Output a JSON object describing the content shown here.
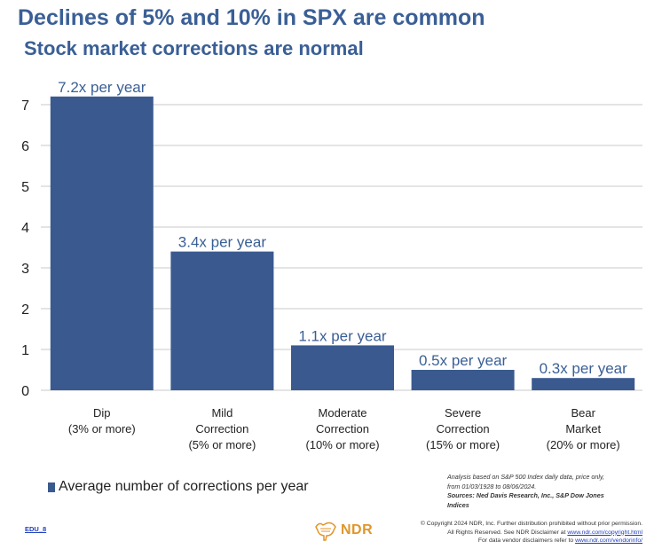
{
  "header": {
    "title": "Declines of 5% and 10% in SPX are common",
    "subtitle": "Stock market corrections are normal"
  },
  "chart_data": {
    "type": "bar",
    "title": "Declines of 5% and 10% in SPX are common",
    "subtitle": "Stock market corrections are normal",
    "categories": [
      {
        "line1": "Dip",
        "line2": "(3% or more)"
      },
      {
        "line1": "Mild",
        "line2": "Correction",
        "line3": "(5% or more)"
      },
      {
        "line1": "Moderate",
        "line2": "Correction",
        "line3": "(10% or more)"
      },
      {
        "line1": "Severe",
        "line2": "Correction",
        "line3": "(15% or more)"
      },
      {
        "line1": "Bear",
        "line2": "Market",
        "line3": "(20% or more)"
      }
    ],
    "values": [
      7.2,
      3.4,
      1.1,
      0.5,
      0.3
    ],
    "data_labels": [
      "7.2x per year",
      "3.4x per year",
      "1.1x per year",
      "0.5x per year",
      "0.3x per year"
    ],
    "ylim": [
      0,
      7
    ],
    "yticks": [
      0,
      1,
      2,
      3,
      4,
      5,
      6,
      7
    ],
    "grid": true,
    "legend": "Average number of corrections per year",
    "bar_color": "#3a5a8f",
    "label_color": "#3a5f96"
  },
  "notes": {
    "analysis_line1": "Analysis based on S&P 500 Index daily data, price only,",
    "analysis_line2": "from 01/03/1928 to 08/06/2024.",
    "sources": "Sources: Ned Davis Research, Inc., S&P Dow Jones Indices"
  },
  "footer": {
    "edu_code": "EDU_8",
    "logo_text": "NDR",
    "copyright_line1": "© Copyright 2024 NDR, Inc. Further distribution prohibited without prior permission.",
    "copyright_line2": "All Rights Reserved. See NDR Disclaimer at",
    "copyright_link1": "www.ndr.com/copyright.html",
    "copyright_line3": "For data vendor disclaimers refer to",
    "copyright_link2": "www.ndr.com/vendorinfo/"
  }
}
